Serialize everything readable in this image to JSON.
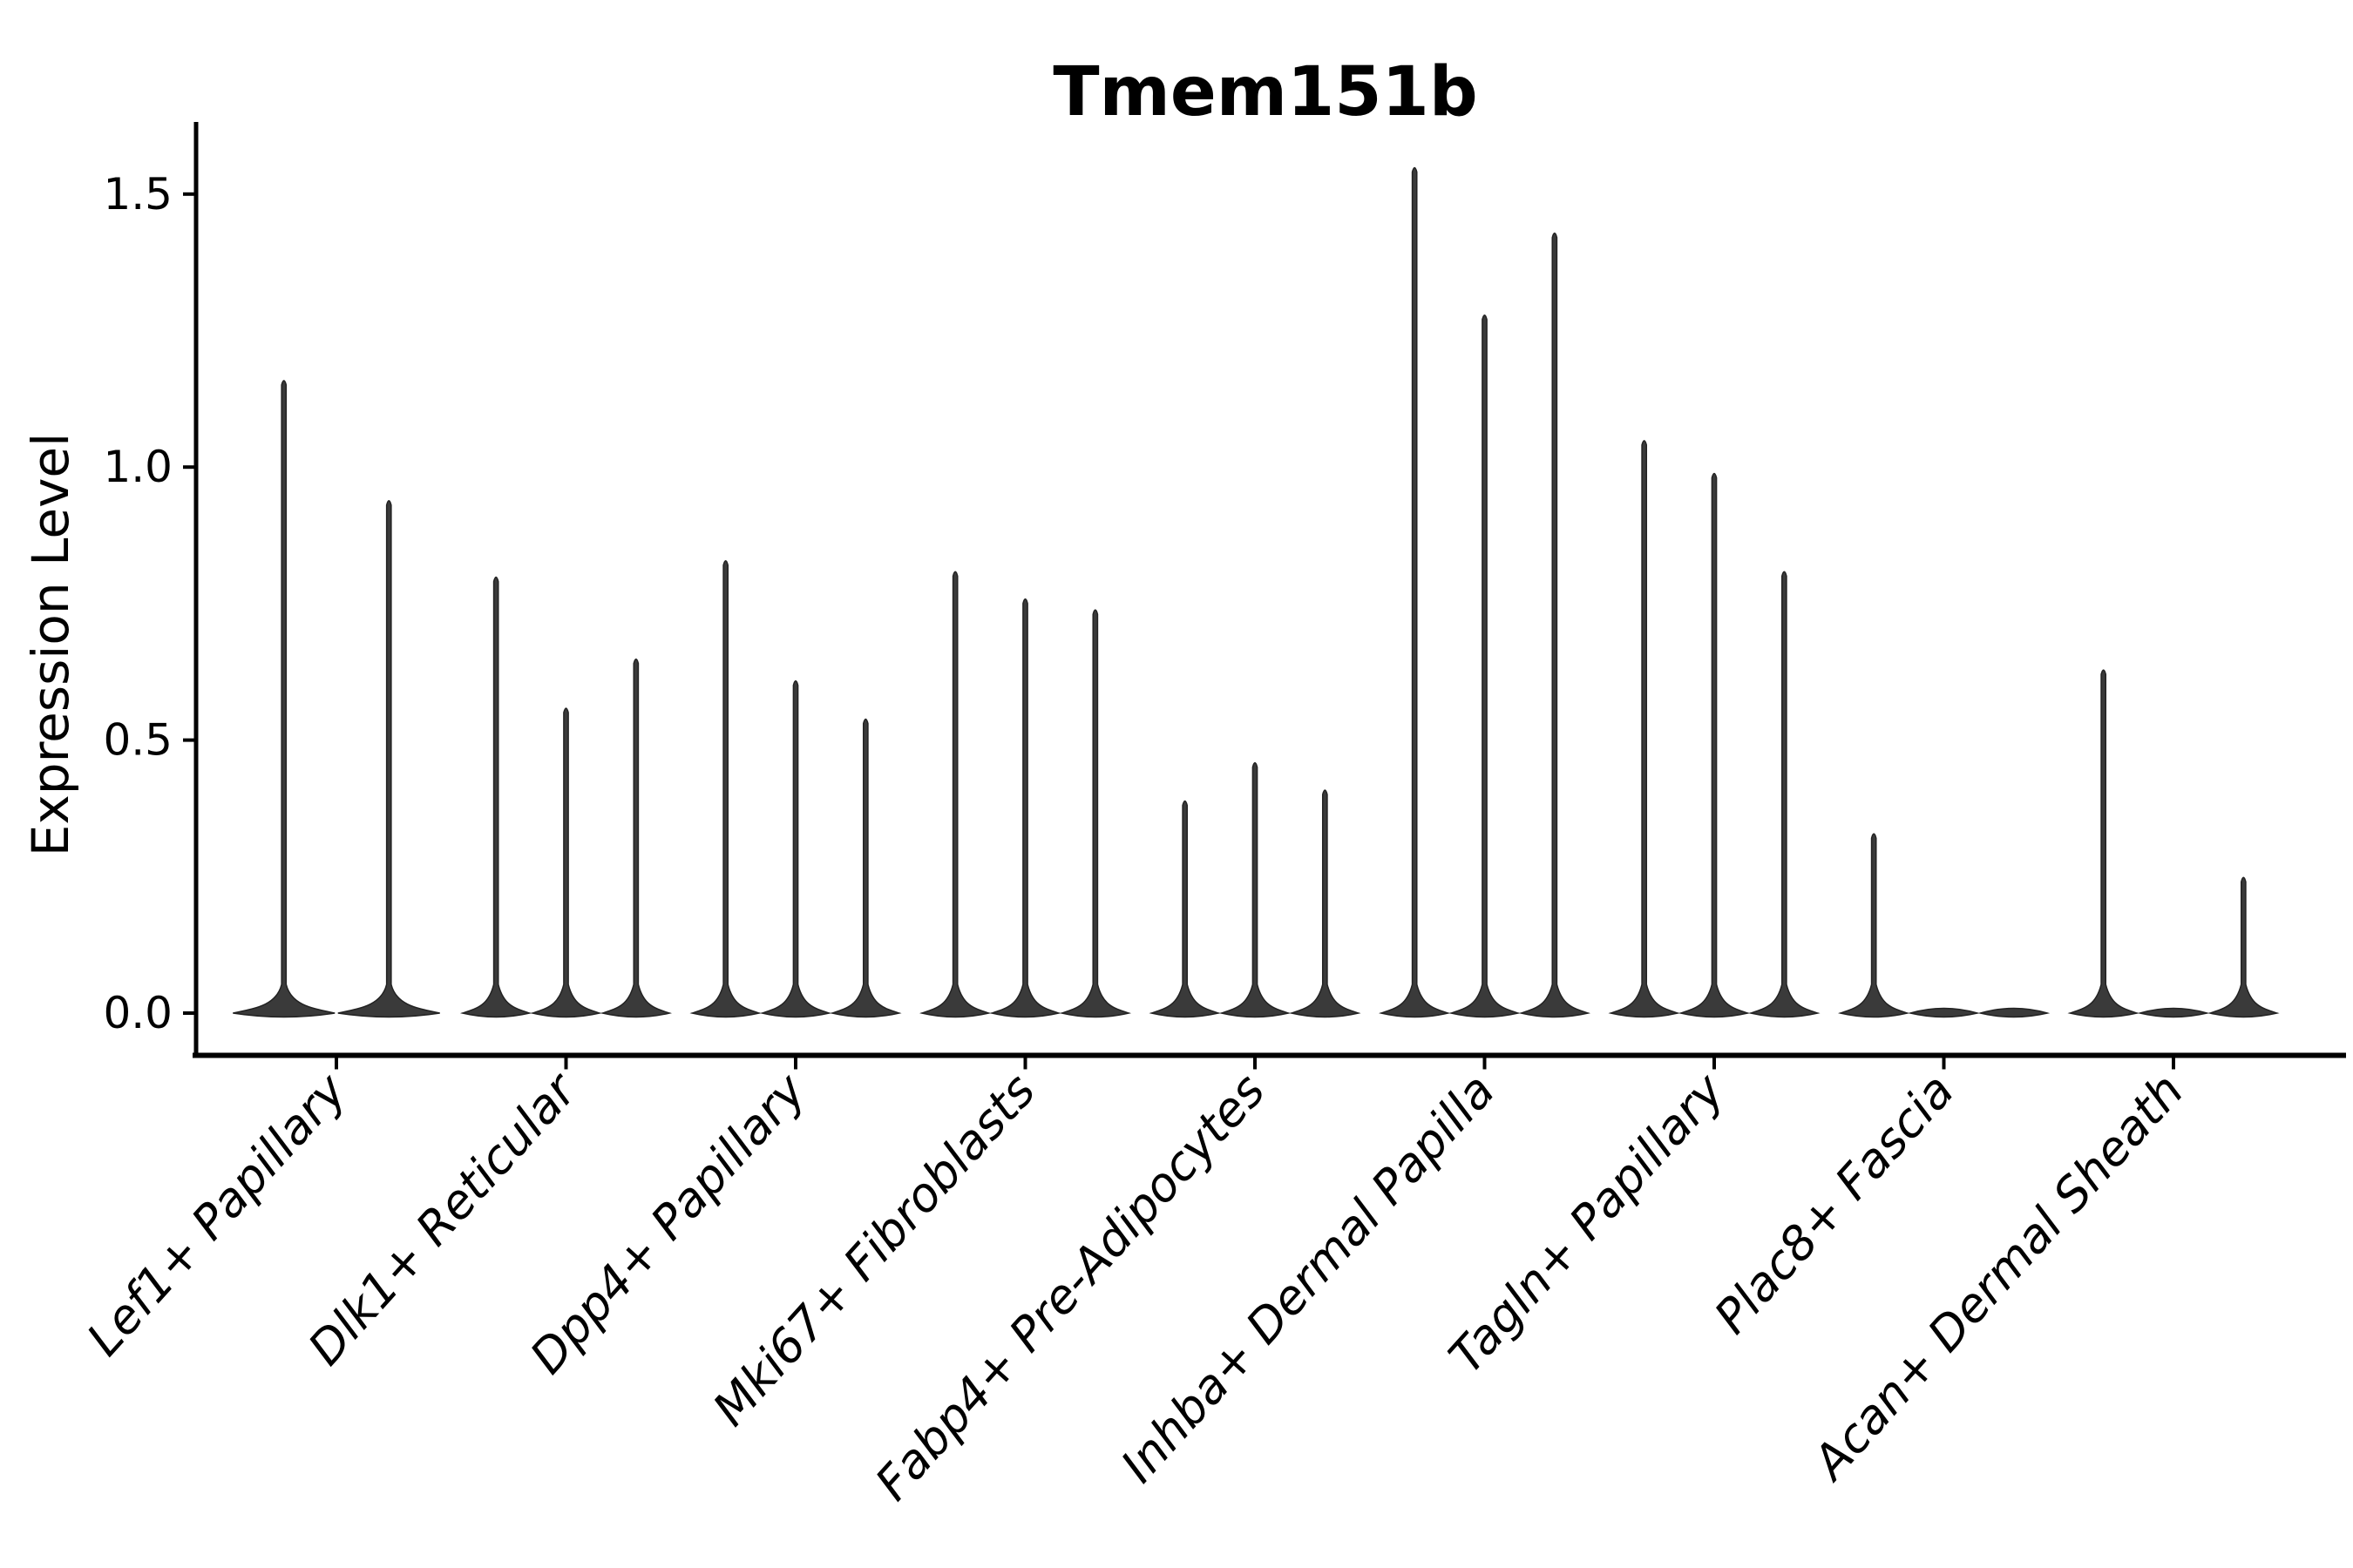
{
  "title": "Tmem151b",
  "chart_data": {
    "type": "violin",
    "title": "Tmem151b",
    "xlabel": "",
    "ylabel": "Expression Level",
    "yticks": [
      {
        "label": "0.0",
        "value": 0.0
      },
      {
        "label": "0.5",
        "value": 0.5
      },
      {
        "label": "1.0",
        "value": 1.0
      },
      {
        "label": "1.5",
        "value": 1.5
      }
    ],
    "ylim": [
      -0.07,
      1.63
    ],
    "grid": false,
    "legend": "none",
    "categories": [
      "Lef1+ Papillary",
      "Dlk1+ Reticular",
      "Dpp4+ Papillary",
      "Mki67+ Fibroblasts",
      "Fabp4+ Pre-Adipocytes",
      "Inhba+ Dermal Papilla",
      "Tagln+ Papillary",
      "Plac8+ Fascia",
      "Acan+ Dermal Sheath"
    ],
    "violin_maxima": [
      [
        1.16,
        0.94
      ],
      [
        0.8,
        0.56,
        0.65
      ],
      [
        0.83,
        0.61,
        0.54
      ],
      [
        0.81,
        0.76,
        0.74
      ],
      [
        0.39,
        0.46,
        0.41
      ],
      [
        1.55,
        1.28,
        1.43
      ],
      [
        1.05,
        0.99,
        0.81
      ],
      [
        0.33,
        0.0,
        0.0
      ],
      [
        0.63,
        0.0,
        0.25
      ]
    ]
  },
  "colors": {
    "violin_fill": "#3a3a3a",
    "violin_edge": "#222222",
    "axis": "#000000",
    "text": "#000000",
    "background": "#ffffff"
  }
}
